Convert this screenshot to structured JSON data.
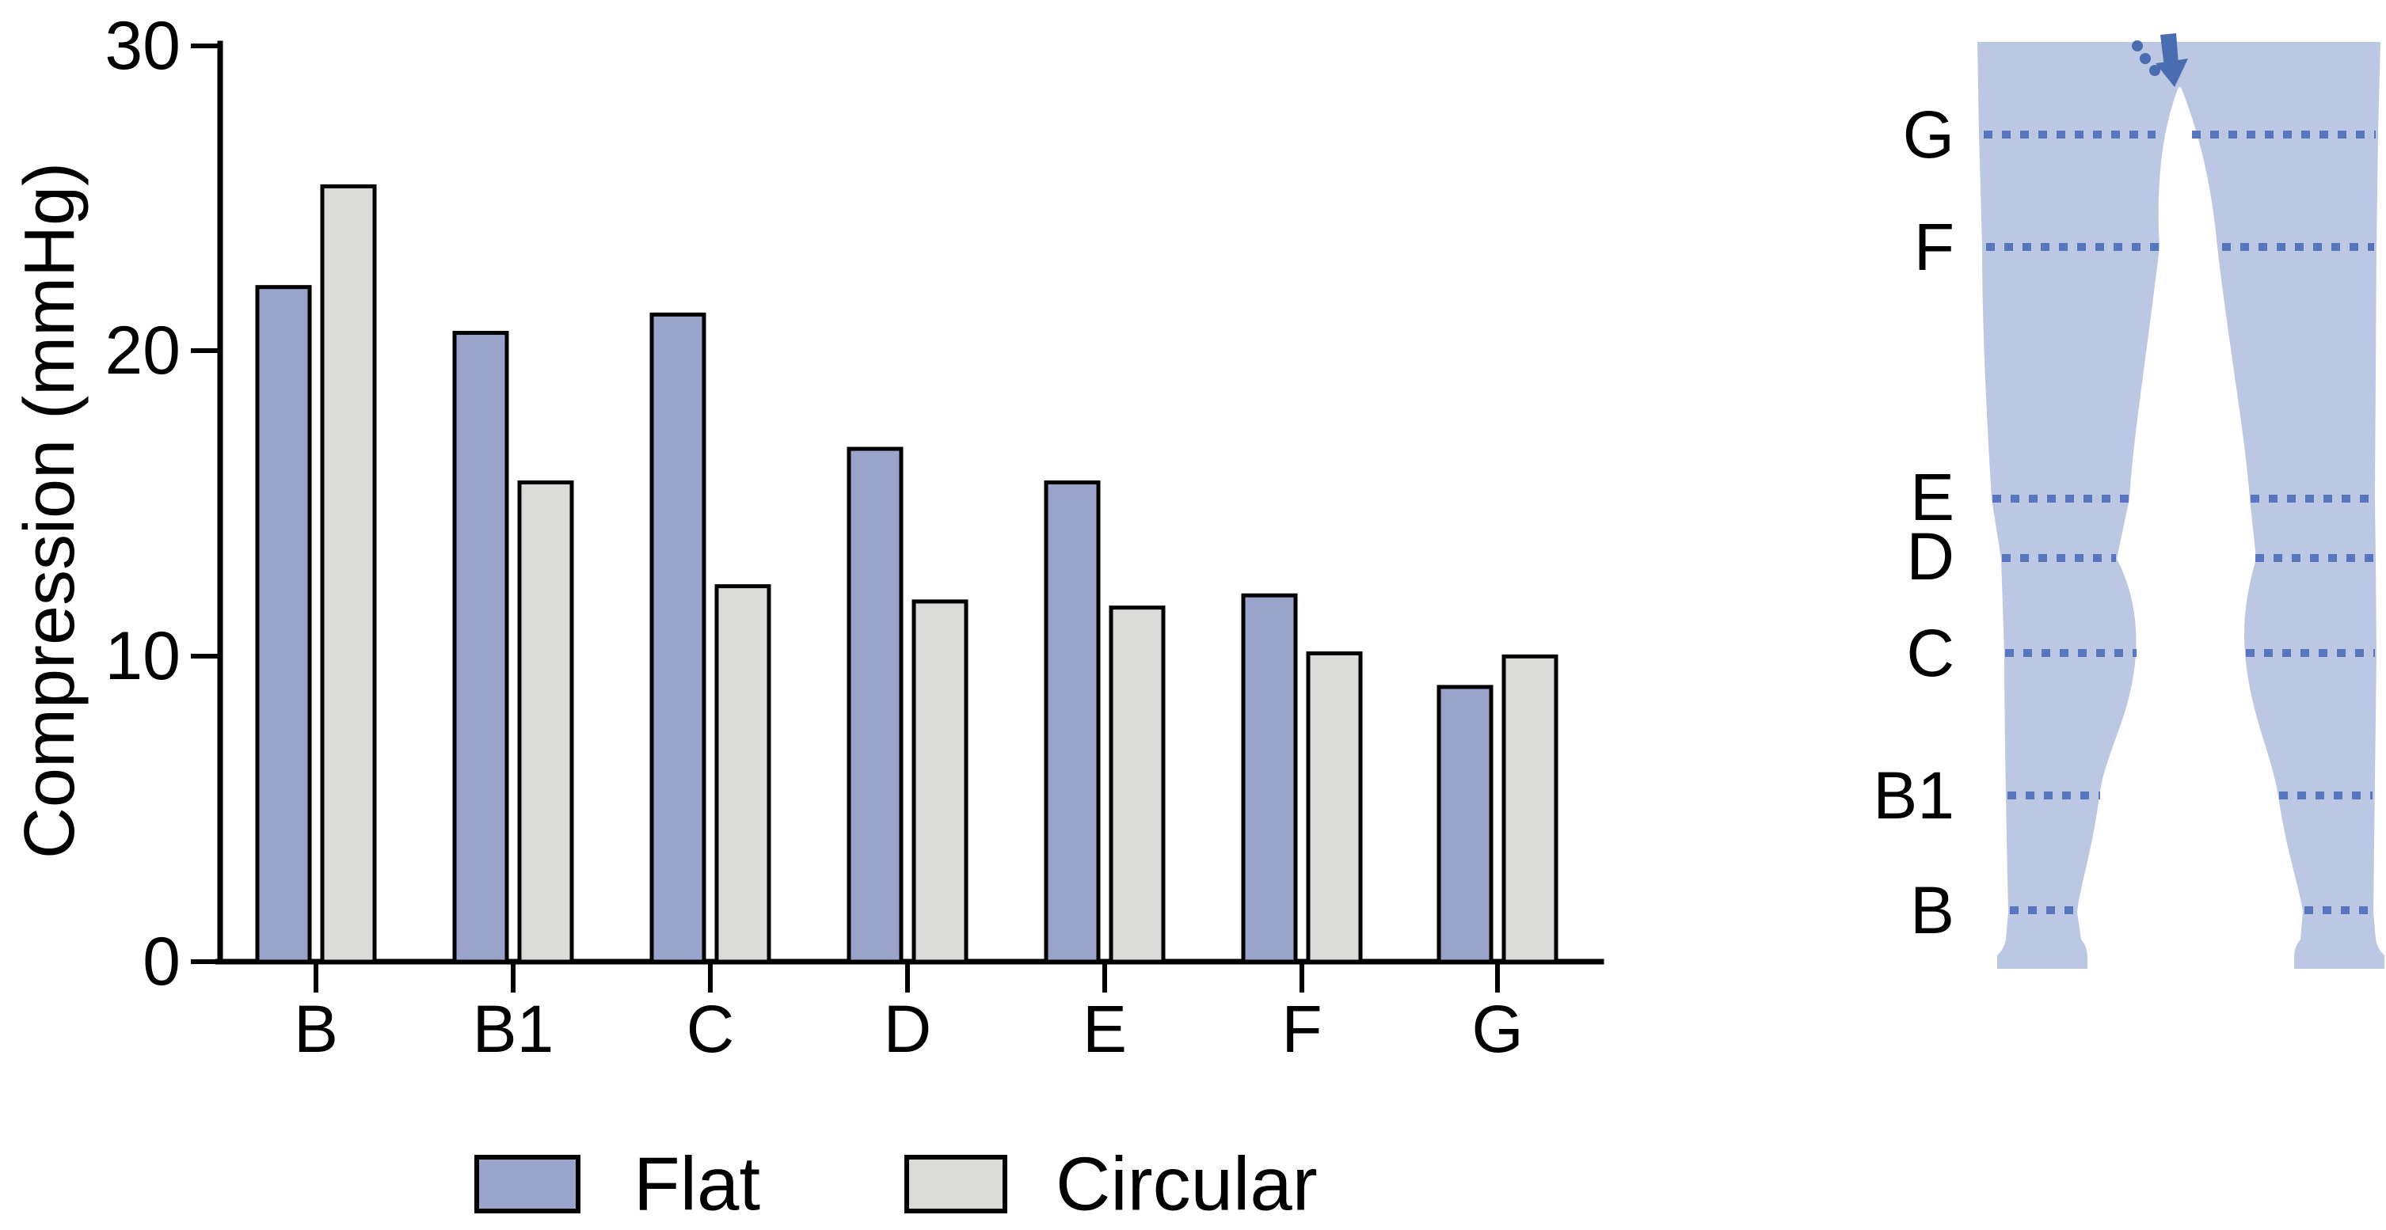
{
  "figure": {
    "background": "#FFFFFF"
  },
  "chart_data": {
    "type": "bar",
    "title": "",
    "categories": [
      "B",
      "B1",
      "C",
      "D",
      "E",
      "F",
      "G"
    ],
    "series": [
      {
        "name": "Flat",
        "color": "#9AA4CB",
        "values": [
          22.1,
          20.6,
          21.2,
          16.8,
          15.7,
          12.0,
          9.0
        ]
      },
      {
        "name": "Circular",
        "color": "#DBDBD9",
        "values": [
          25.4,
          15.7,
          12.3,
          11.8,
          11.6,
          10.1,
          10.0
        ]
      }
    ],
    "xlabel": "",
    "ylabel": "Compression (mmHg)",
    "ylim": [
      0,
      30
    ],
    "yticks": [
      0,
      10,
      20,
      30
    ],
    "ytick_labels": [
      "0",
      "10",
      "20",
      "30"
    ],
    "grid": false,
    "bar_outline_color": "#000000",
    "legend_position": "bottom",
    "legend": [
      {
        "label": "Flat",
        "color": "#9AA4CB"
      },
      {
        "label": "Circular",
        "color": "#DBDBD9"
      }
    ]
  },
  "leg_diagram": {
    "description": "legs-measurement-levels-illustration",
    "fill_color": "#BCC8E3",
    "line_color": "#5876BD",
    "arrow_color": "#4A6CB0",
    "levels": [
      {
        "label": "G"
      },
      {
        "label": "F"
      },
      {
        "label": "E"
      },
      {
        "label": "D"
      },
      {
        "label": "C"
      },
      {
        "label": "B1"
      },
      {
        "label": "B"
      }
    ]
  }
}
